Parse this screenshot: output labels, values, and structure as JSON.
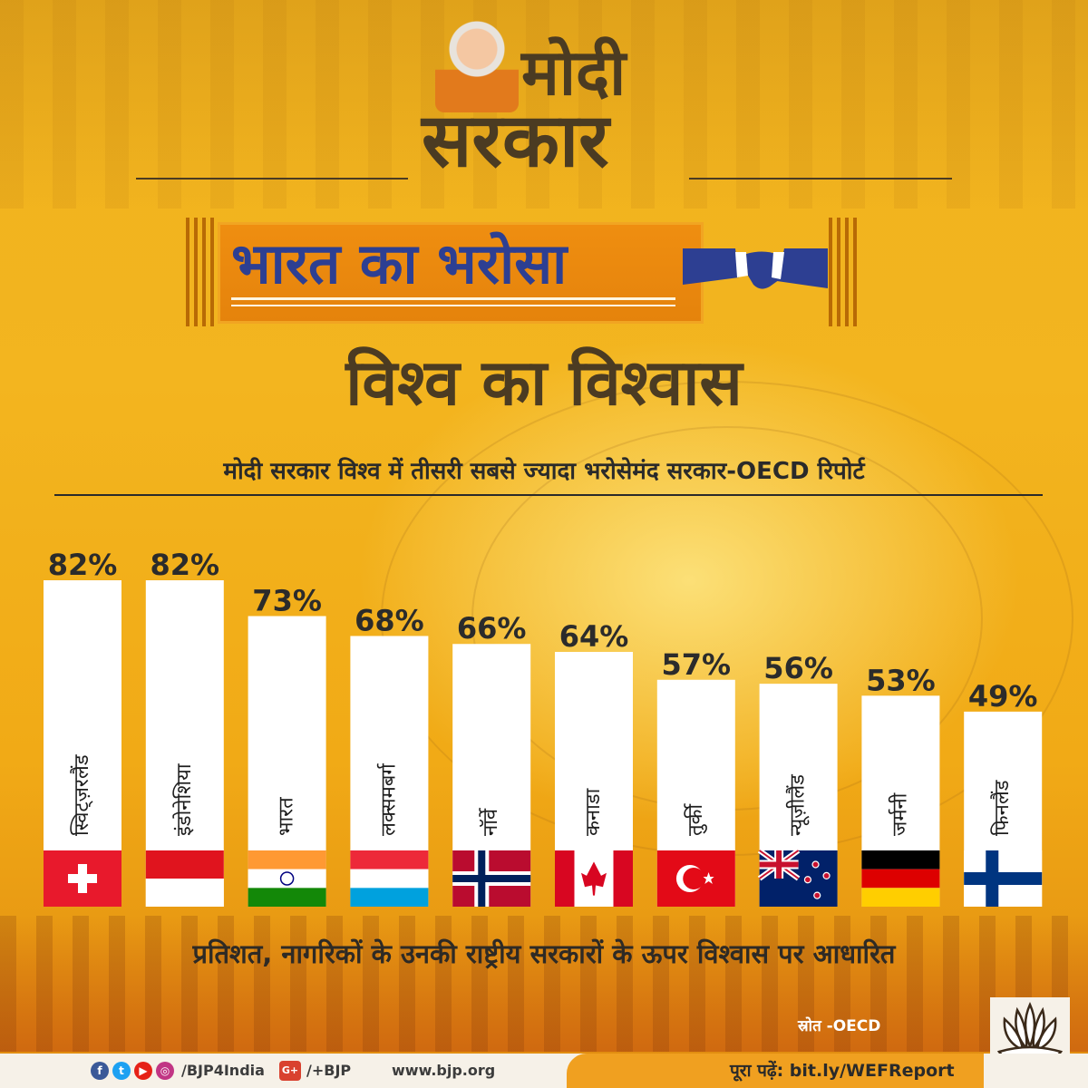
{
  "header": {
    "brand_line1": "मोदी",
    "brand_line2": "सरकार",
    "banner_title": "भारत का भरोसा",
    "subtitle": "विश्व का विश्वास",
    "headline": "मोदी सरकार विश्व में तीसरी सबसे ज्यादा भरोसेमंद सरकार-OECD रिपोर्ट"
  },
  "chart_data": {
    "type": "bar",
    "categories": [
      "स्विट्ज़रलैंड",
      "इंडोनेशिया",
      "भारत",
      "लक्समबर्ग",
      "नॉर्वे",
      "कनाडा",
      "तुर्की",
      "न्यूज़ीलैंड",
      "जर्मनी",
      "फिनलैंड"
    ],
    "values": [
      82,
      82,
      73,
      68,
      66,
      64,
      57,
      56,
      53,
      49
    ],
    "value_labels": [
      "82%",
      "82%",
      "73%",
      "68%",
      "66%",
      "64%",
      "57%",
      "56%",
      "53%",
      "49%"
    ],
    "flags": [
      "switzerland",
      "indonesia",
      "india",
      "luxembourg",
      "norway",
      "canada",
      "turkey",
      "new-zealand",
      "germany",
      "finland"
    ],
    "unit": "%",
    "title": "",
    "xlabel": "",
    "ylabel": "",
    "grid": false,
    "bar_color": "#ffffff"
  },
  "footnote": "प्रतिशत, नागरिकों के उनकी राष्ट्रीय सरकारों के ऊपर विश्वास पर आधारित",
  "source": "स्रोत -OECD",
  "footer": {
    "social_handle": "/BJP4India",
    "gplus_handle": "/+BJP",
    "website": "www.bjp.org",
    "read_more": "पूरा पढ़ें: bit.ly/WEFReport",
    "icons": [
      "facebook-icon",
      "twitter-icon",
      "youtube-icon",
      "instagram-icon",
      "google-plus-icon"
    ]
  },
  "colors": {
    "accent_orange": "#ef8e10",
    "banner_text": "#2d3f92",
    "dark_text": "#4b3b22",
    "handshake": "#2d3f92"
  }
}
